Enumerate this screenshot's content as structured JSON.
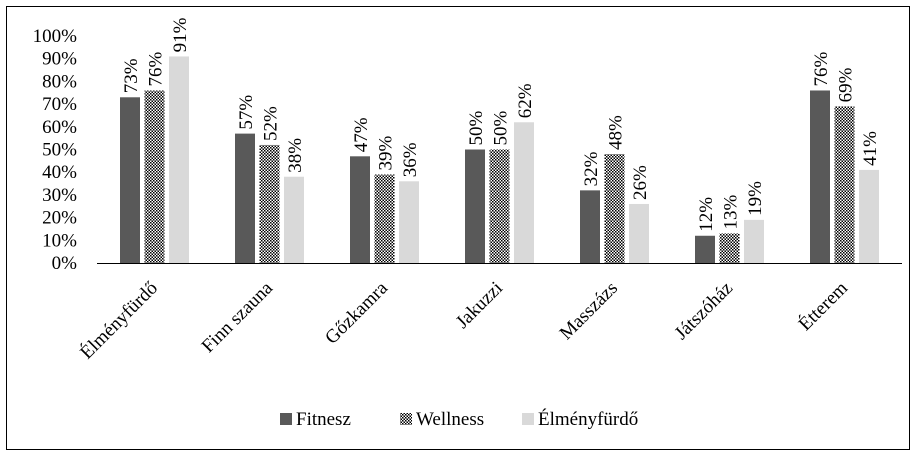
{
  "chart_data": {
    "type": "bar",
    "categories": [
      "Élményfürdő",
      "Finn szauna",
      "Gőzkamra",
      "Jakuzzi",
      "Masszázs",
      "Játszóház",
      "Étterem"
    ],
    "series": [
      {
        "name": "Fitnesz",
        "values": [
          73,
          57,
          47,
          50,
          32,
          12,
          76
        ],
        "color": "#595959",
        "pattern": "solid"
      },
      {
        "name": "Wellness",
        "values": [
          76,
          52,
          39,
          50,
          48,
          13,
          69
        ],
        "color": "#000000",
        "pattern": "checker"
      },
      {
        "name": "Élményfürdő",
        "values": [
          91,
          38,
          36,
          62,
          26,
          19,
          41
        ],
        "color": "#d9d9d9",
        "pattern": "solid"
      }
    ],
    "y_ticks": [
      "0%",
      "10%",
      "20%",
      "30%",
      "40%",
      "50%",
      "60%",
      "70%",
      "80%",
      "90%",
      "100%"
    ],
    "ylim": [
      0,
      100
    ],
    "value_suffix": "%",
    "grid": false,
    "legend_position": "bottom"
  }
}
